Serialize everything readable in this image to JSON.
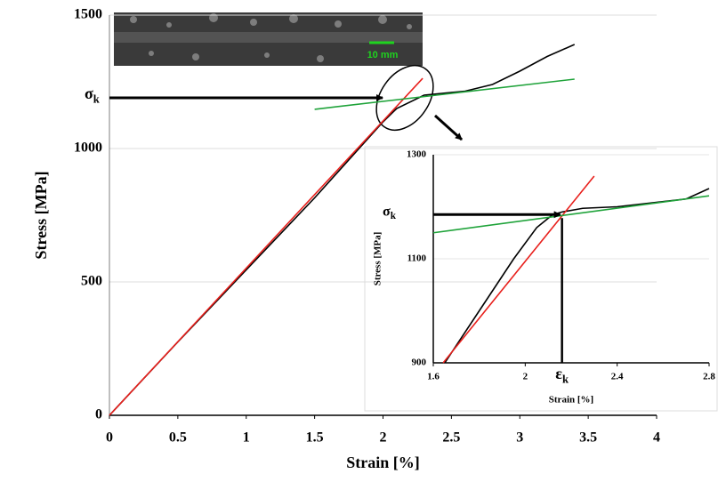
{
  "chart_data": [
    {
      "type": "line",
      "x_label": "Strain [%]",
      "y_label": "Stress [MPa]",
      "xlim": [
        0,
        4
      ],
      "ylim": [
        0,
        1500
      ],
      "xticks": [
        0,
        0.5,
        1,
        1.5,
        2,
        2.5,
        3,
        3.5,
        4
      ],
      "yticks": [
        0,
        500,
        1000,
        1500
      ],
      "grid": true,
      "series": [
        {
          "color": "#000000",
          "x": [
            0,
            0.5,
            1,
            1.5,
            2,
            2.1,
            2.3,
            2.6,
            2.8,
            3.0,
            3.2,
            3.4
          ],
          "values": [
            0,
            275,
            545,
            815,
            1100,
            1150,
            1200,
            1215,
            1240,
            1290,
            1345,
            1390
          ]
        },
        {
          "color": "#e8201c",
          "x": [
            0,
            2.29
          ],
          "values": [
            0,
            1263
          ]
        },
        {
          "color": "#1fa33a",
          "x": [
            1.5,
            3.4
          ],
          "values": [
            1147,
            1260
          ]
        }
      ],
      "annotations": [
        {
          "symbol": "σ",
          "subscript": "k",
          "y": 1190,
          "x": 2.01
        }
      ],
      "image_scale_label": "10 mm"
    },
    {
      "type": "line",
      "x_label": "Strain [%]",
      "y_label": "Stress [MPa]",
      "xlim": [
        1.6,
        2.8
      ],
      "ylim": [
        900,
        1300
      ],
      "xticks": [
        1.6,
        2,
        2.4,
        2.8
      ],
      "yticks": [
        900,
        1100,
        1300
      ],
      "grid": true,
      "series": [
        {
          "color": "#000000",
          "x": [
            1.65,
            1.8,
            1.95,
            2.05,
            2.12,
            2.16,
            2.25,
            2.4,
            2.6,
            2.7,
            2.8
          ],
          "values": [
            900,
            1000,
            1100,
            1160,
            1185,
            1190,
            1197,
            1200,
            1210,
            1215,
            1235
          ]
        },
        {
          "color": "#e8201c",
          "x": [
            1.643,
            2.3
          ],
          "values": [
            900,
            1259
          ]
        },
        {
          "color": "#1fa33a",
          "x": [
            1.6,
            2.8
          ],
          "values": [
            1150,
            1221
          ]
        }
      ],
      "annotations": [
        {
          "symbol": "σ",
          "subscript": "k",
          "y": 1185,
          "x": 2.16
        },
        {
          "symbol": "ε",
          "subscript": "k",
          "x": 2.16
        }
      ]
    }
  ]
}
